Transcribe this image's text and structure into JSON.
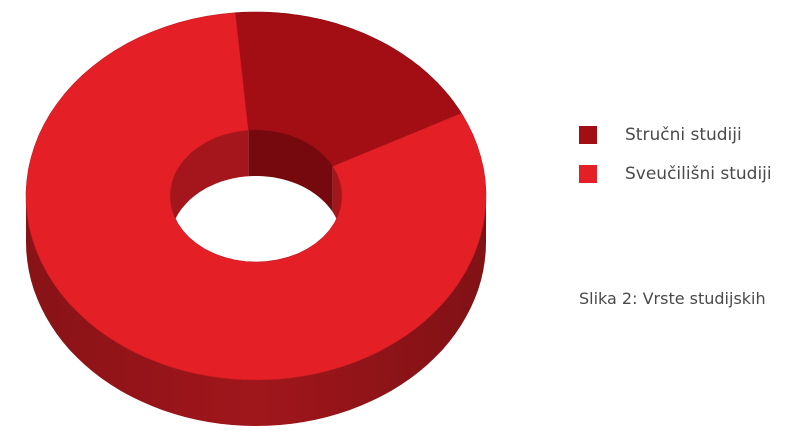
{
  "chart_data": {
    "type": "pie",
    "variant": "3d-donut",
    "categories": [
      "Stručni studiji",
      "Sveučilišni studiji"
    ],
    "values": [
      19,
      81
    ],
    "colors": [
      "#a30d14",
      "#e41f26"
    ],
    "legend": {
      "position": "right",
      "items": [
        {
          "label": "Stručni studiji",
          "color": "#a30d14"
        },
        {
          "label": "Sveučilišni studiji",
          "color": "#e41f26"
        }
      ]
    },
    "caption": "Slika 2: Vrste studijskih"
  }
}
